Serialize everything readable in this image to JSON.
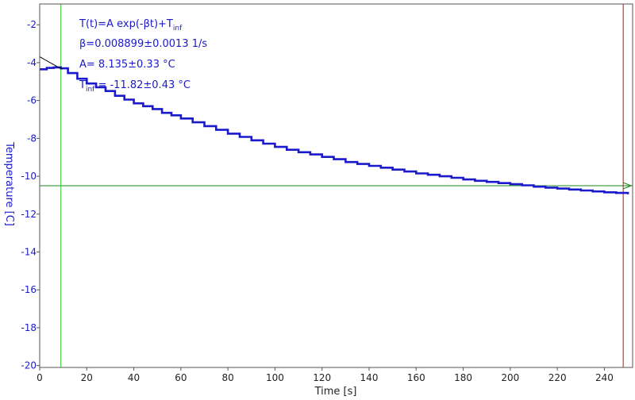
{
  "chart_data": {
    "type": "line",
    "xlabel": "Time [s]",
    "ylabel": "Temperature [C]",
    "xlim": [
      0,
      252
    ],
    "ylim": [
      -20.1,
      -0.9
    ],
    "x_ticks": [
      0,
      20,
      40,
      60,
      80,
      100,
      120,
      140,
      160,
      180,
      200,
      220,
      240
    ],
    "y_ticks": [
      -2,
      -4,
      -6,
      -8,
      -10,
      -12,
      -14,
      -16,
      -18,
      -20
    ],
    "grid": false,
    "series": [
      {
        "kind": "measured",
        "color": "#1a1acc",
        "points": [
          [
            0,
            -4.35
          ],
          [
            3,
            -4.28
          ],
          [
            6,
            -4.25
          ],
          [
            9,
            -4.3
          ],
          [
            12,
            -4.55
          ],
          [
            16,
            -4.85
          ],
          [
            20,
            -5.1
          ],
          [
            24,
            -5.3
          ],
          [
            28,
            -5.5
          ],
          [
            32,
            -5.75
          ],
          [
            36,
            -5.95
          ],
          [
            40,
            -6.15
          ],
          [
            44,
            -6.3
          ],
          [
            48,
            -6.45
          ],
          [
            52,
            -6.65
          ],
          [
            56,
            -6.78
          ],
          [
            60,
            -6.95
          ],
          [
            65,
            -7.15
          ],
          [
            70,
            -7.35
          ],
          [
            75,
            -7.55
          ],
          [
            80,
            -7.75
          ],
          [
            85,
            -7.92
          ],
          [
            90,
            -8.1
          ],
          [
            95,
            -8.28
          ],
          [
            100,
            -8.45
          ],
          [
            105,
            -8.6
          ],
          [
            110,
            -8.73
          ],
          [
            115,
            -8.85
          ],
          [
            120,
            -8.98
          ],
          [
            125,
            -9.1
          ],
          [
            130,
            -9.25
          ],
          [
            135,
            -9.35
          ],
          [
            140,
            -9.45
          ],
          [
            145,
            -9.55
          ],
          [
            150,
            -9.65
          ],
          [
            155,
            -9.75
          ],
          [
            160,
            -9.85
          ],
          [
            165,
            -9.92
          ],
          [
            170,
            -10.0
          ],
          [
            175,
            -10.08
          ],
          [
            180,
            -10.17
          ],
          [
            185,
            -10.24
          ],
          [
            190,
            -10.3
          ],
          [
            195,
            -10.36
          ],
          [
            200,
            -10.42
          ],
          [
            205,
            -10.48
          ],
          [
            210,
            -10.55
          ],
          [
            215,
            -10.6
          ],
          [
            220,
            -10.65
          ],
          [
            225,
            -10.7
          ],
          [
            230,
            -10.75
          ],
          [
            235,
            -10.8
          ],
          [
            240,
            -10.85
          ],
          [
            245,
            -10.88
          ],
          [
            250,
            -10.95
          ]
        ]
      },
      {
        "kind": "fit",
        "color": "#000000",
        "x_range": [
          0,
          9.5
        ],
        "model": {
          "A": 8.135,
          "beta": 0.008899,
          "T_inf": -11.82
        }
      }
    ],
    "reference_lines": {
      "horizontal_y": -10.5,
      "horizontal_color": "#1a8a1a",
      "vertical_green_x": 9,
      "vertical_green_color": "#33cc33",
      "vertical_red_x": 248,
      "vertical_red_color": "#aa1a1a"
    },
    "annotations": {
      "formula": {
        "main": "T(t)=A exp(-βt)+T",
        "sub": "inf"
      },
      "beta": "β=0.008899±0.0013 1/s",
      "amplitude": "A= 8.135±0.33 °C",
      "tinf": {
        "prefix": "T",
        "sub": "inf",
        "rest": " = -11.82±0.43 °C"
      }
    }
  }
}
